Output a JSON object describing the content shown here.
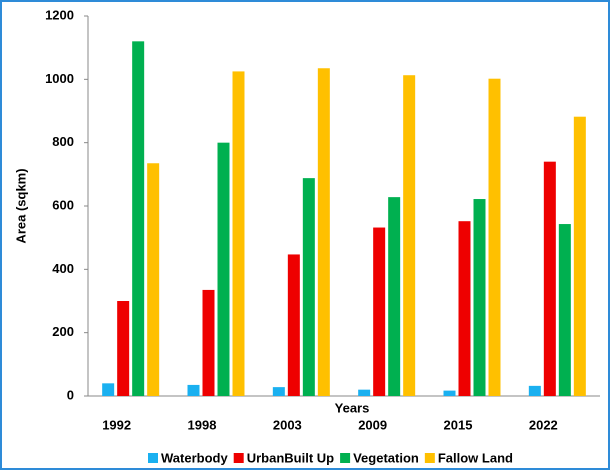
{
  "chart_data": {
    "type": "bar",
    "x_label": "Years",
    "y_label": "Area (sqkm)",
    "categories": [
      "1992",
      "1998",
      "2003",
      "2009",
      "2015",
      "2022"
    ],
    "series": [
      {
        "name": "Waterbody",
        "color": "#1ab0f0",
        "values": [
          40,
          35,
          28,
          20,
          17,
          32
        ]
      },
      {
        "name": "UrbanBuilt Up",
        "color": "#ee0000",
        "values": [
          300,
          335,
          447,
          532,
          552,
          740
        ]
      },
      {
        "name": "Vegetation",
        "color": "#00b050",
        "values": [
          1120,
          800,
          688,
          628,
          622,
          543
        ]
      },
      {
        "name": "Fallow Land",
        "color": "#ffc000",
        "values": [
          735,
          1025,
          1035,
          1013,
          1002,
          882
        ]
      }
    ],
    "ylim": [
      0,
      1200
    ],
    "yticks": [
      0,
      200,
      400,
      600,
      800,
      1000,
      1200
    ],
    "grid": false
  }
}
